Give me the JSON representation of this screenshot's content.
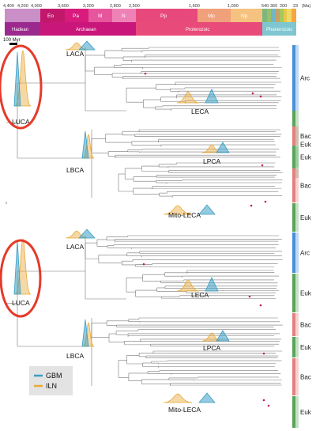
{
  "timescale": {
    "ticks": [
      "4,400",
      "4,200",
      "4,000",
      "3,600",
      "3,200",
      "2,800",
      "2,500",
      "1,600",
      "1,000",
      "540",
      "360",
      "200",
      "23"
    ],
    "unit": "(Ma)",
    "eras": [
      {
        "label": "Eo",
        "color": "#c2186b"
      },
      {
        "label": "Pa",
        "color": "#d81b7c"
      },
      {
        "label": "M",
        "color": "#e7559c"
      },
      {
        "label": "N",
        "color": "#ee82b6"
      },
      {
        "label": "Pp",
        "color": "#e8497d"
      },
      {
        "label": "Mp",
        "color": "#f0a07a"
      },
      {
        "label": "Np",
        "color": "#f6c27f"
      }
    ],
    "eons": [
      {
        "label": "Hadean",
        "color": "#9c2a8e"
      },
      {
        "label": "Archaean",
        "color": "#c8167a"
      },
      {
        "label": "Proterozoic",
        "color": "#e84a7a"
      },
      {
        "label": "Phanerozoic",
        "color": "#7fc6d0"
      }
    ],
    "scale_bar": "100 Myr"
  },
  "nodes": {
    "luca_top": "LUCA",
    "laca_top": "LACA",
    "leca_top": "LECA",
    "lbca_top": "LBCA",
    "lpca_top": "LPCA",
    "mito_top": "Mito-LECA",
    "luca_bottom": "LUCA",
    "laca_bottom": "LACA",
    "leca_bottom": "LECA",
    "lbca_bottom": "LBCA",
    "lpca_bottom": "LPCA",
    "mito_bottom": "Mito-LECA"
  },
  "clades": {
    "top": [
      {
        "label": "Arc",
        "color": "#4a90d9"
      },
      {
        "label": "Euk",
        "color": "#5aa55a"
      },
      {
        "label": "Bac",
        "color": "#e58080"
      },
      {
        "label": "Euk",
        "color": "#5aa55a"
      },
      {
        "label": "Bac",
        "color": "#e58080"
      },
      {
        "label": "Euk",
        "color": "#5aa55a"
      }
    ],
    "bottom": [
      {
        "label": "Arc",
        "color": "#4a90d9"
      },
      {
        "label": "Euk",
        "color": "#5aa55a"
      },
      {
        "label": "Bac",
        "color": "#e58080"
      },
      {
        "label": "Euk",
        "color": "#5aa55a"
      },
      {
        "label": "Bac",
        "color": "#e58080"
      },
      {
        "label": "Euk",
        "color": "#5aa55a"
      }
    ]
  },
  "legend": [
    {
      "label": "GBM",
      "color": "#3a9fc4"
    },
    {
      "label": "ILN",
      "color": "#e8a93a"
    }
  ],
  "colors": {
    "gbm": "#3a9fc4",
    "iln": "#e8a93a",
    "highlight": "#e53a2a",
    "branch": "#777777"
  }
}
